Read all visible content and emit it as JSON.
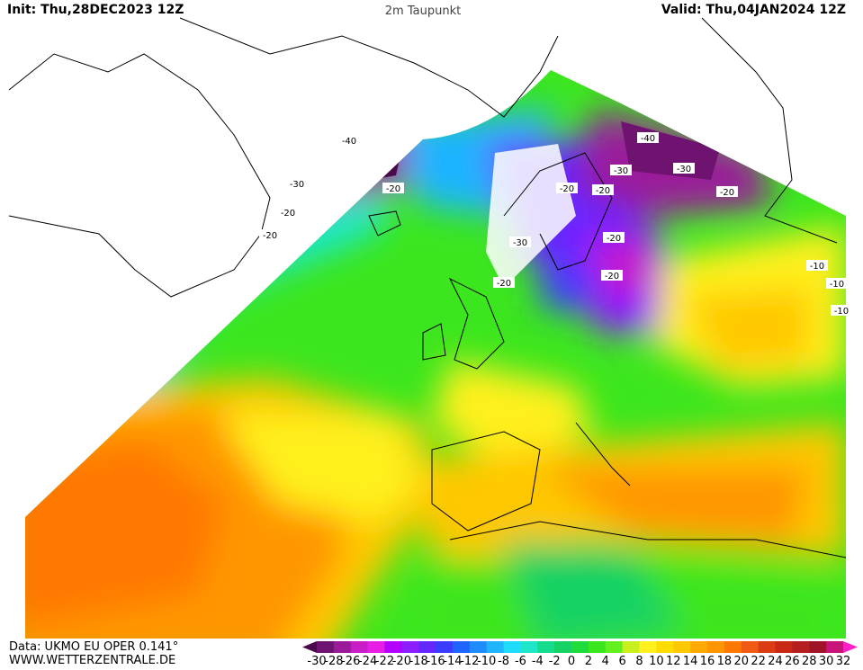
{
  "header": {
    "init": "Init: Thu,28DEC2023 12Z",
    "title": "2m Taupunkt",
    "valid": "Valid: Thu,04JAN2024 12Z"
  },
  "footer": {
    "source": "Data: UKMO EU OPER 0.141°",
    "website": "WWW.WETTERZENTRALE.DE"
  },
  "legend": {
    "ticks": [
      -30,
      -28,
      -26,
      -24,
      -22,
      -20,
      -18,
      -16,
      -14,
      -12,
      -10,
      -8,
      -6,
      -4,
      -2,
      0,
      2,
      4,
      6,
      8,
      10,
      12,
      14,
      16,
      18,
      20,
      22,
      24,
      26,
      28,
      30,
      32
    ],
    "colors": [
      "#4b0a4b",
      "#6e1470",
      "#9a1a9a",
      "#c81ec8",
      "#e61ee6",
      "#b400ff",
      "#8c1eff",
      "#6428ff",
      "#3c3cff",
      "#1e64ff",
      "#1e8cff",
      "#1eb4ff",
      "#1edcff",
      "#1ee6c8",
      "#14dc8c",
      "#14d264",
      "#1edc3c",
      "#3ce61e",
      "#64f01e",
      "#c8f01e",
      "#fff01e",
      "#ffdc00",
      "#ffc800",
      "#ffaa00",
      "#ff9600",
      "#ff7800",
      "#f05a14",
      "#dc3c14",
      "#c82814",
      "#b41e1e",
      "#a01428",
      "#c81478",
      "#ff1ec8"
    ]
  },
  "contour_labels": [
    -40,
    -30,
    -20,
    -40,
    -30,
    -20,
    -20,
    -30,
    -20,
    -20,
    -20,
    -20,
    -30,
    -20,
    -20,
    -10,
    -10,
    -10
  ]
}
